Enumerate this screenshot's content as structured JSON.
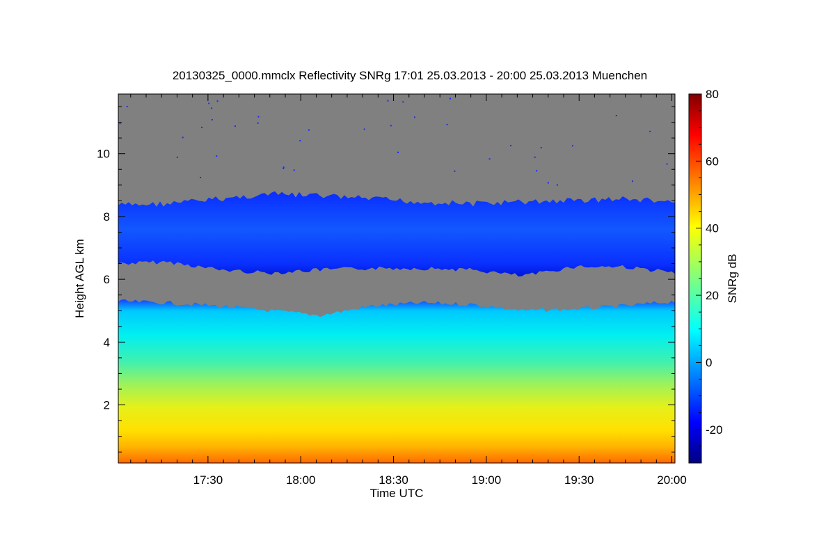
{
  "title": "20130325_0000.mmclx Reflectivity SNRg   17:01 25.03.2013 - 20:00 25.03.2013 Muenchen",
  "chart_data": {
    "type": "heatmap",
    "title": "20130325_0000.mmclx Reflectivity SNRg   17:01 25.03.2013 - 20:00 25.03.2013 Muenchen",
    "xlabel": "Time UTC",
    "ylabel": "Height AGL km",
    "xlim": [
      "17:01",
      "20:01"
    ],
    "ylim": [
      0.15,
      11.9
    ],
    "x_ticks": [
      "17:30",
      "18:00",
      "18:30",
      "19:00",
      "19:30",
      "20:00"
    ],
    "y_ticks": [
      2,
      4,
      6,
      8,
      10
    ],
    "colorbar": {
      "label": "SNRg dB",
      "range": [
        -30,
        80
      ],
      "ticks": [
        -20,
        0,
        20,
        40,
        60,
        80
      ],
      "colormap": "jet"
    },
    "missing_color": "#808080",
    "grid": false,
    "layers": [
      {
        "name": "upper cloud",
        "base_km": [
          6.5,
          6.55,
          6.3,
          6.2,
          6.3,
          6.35,
          6.35,
          6.3,
          6.1,
          6.4,
          6.4,
          6.2
        ],
        "top_km": [
          8.4,
          8.45,
          8.6,
          8.75,
          8.7,
          8.6,
          8.5,
          8.45,
          8.5,
          8.55,
          8.6,
          8.5
        ],
        "snr_db": [
          -15,
          -22
        ]
      },
      {
        "name": "lower cloud/precip",
        "top_km": [
          5.3,
          5.25,
          5.15,
          5.0,
          4.85,
          5.15,
          5.25,
          5.2,
          5.0,
          5.05,
          5.15,
          5.3
        ],
        "snr_db_at_surface": 52,
        "snr_db_at_top": -10
      }
    ]
  }
}
